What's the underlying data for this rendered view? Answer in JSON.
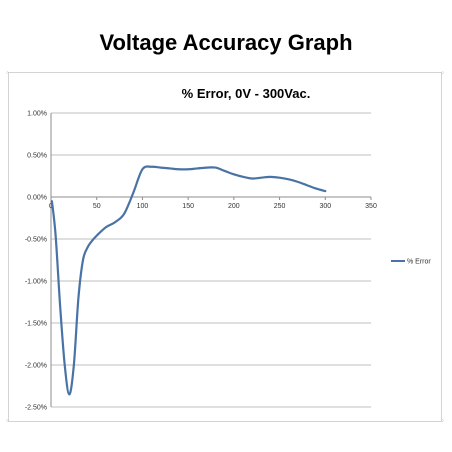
{
  "page": {
    "title": "Voltage Accuracy Graph"
  },
  "chart_data": {
    "type": "line",
    "title": "% Error, 0V - 300Vac.",
    "xlabel": "",
    "ylabel": "",
    "xlim": [
      0,
      350
    ],
    "ylim": [
      -0.025,
      0.01
    ],
    "x_ticks": [
      0,
      50,
      100,
      150,
      200,
      250,
      300,
      350
    ],
    "y_ticks": [
      0.01,
      0.005,
      0,
      -0.005,
      -0.01,
      -0.015,
      -0.02,
      -0.025
    ],
    "x_tick_labels": [
      "0",
      "50",
      "100",
      "150",
      "200",
      "250",
      "300",
      "350"
    ],
    "y_tick_labels": [
      "1.00%",
      "0.50%",
      "0.00%",
      "-0.50%",
      "-1.00%",
      "-1.50%",
      "-2.00%",
      "-2.50%"
    ],
    "grid": "horizontal",
    "legend": "right",
    "series": [
      {
        "name": "% Error",
        "color": "#4a73a5",
        "x": [
          1,
          5,
          10,
          15,
          20,
          25,
          30,
          35,
          40,
          45,
          50,
          60,
          70,
          80,
          90,
          100,
          110,
          120,
          130,
          140,
          150,
          160,
          170,
          180,
          190,
          200,
          210,
          220,
          230,
          240,
          250,
          260,
          270,
          280,
          290,
          300
        ],
        "y": [
          -0.0005,
          -0.0045,
          -0.013,
          -0.02,
          -0.0235,
          -0.02,
          -0.012,
          -0.0075,
          -0.006,
          -0.0052,
          -0.0046,
          -0.0036,
          -0.003,
          -0.002,
          0.0005,
          0.0033,
          0.0036,
          0.0035,
          0.0034,
          0.0033,
          0.0033,
          0.0034,
          0.0035,
          0.0035,
          0.0031,
          0.0027,
          0.0024,
          0.0022,
          0.0023,
          0.0024,
          0.0023,
          0.0021,
          0.0018,
          0.0014,
          0.001,
          0.0007
        ]
      }
    ]
  }
}
